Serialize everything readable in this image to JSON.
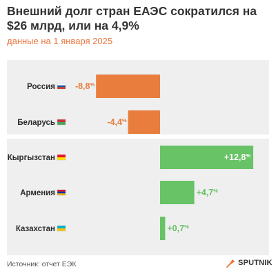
{
  "title": "Внешний долг стран ЕАЭС сократился на $26 млрд, или на 4,9%",
  "subtitle": "данные на 1 января 2025",
  "footer": {
    "source": "Источник: отчет ЕЭК",
    "brand": "SPUTNIK"
  },
  "colors": {
    "negative": "#e87d3e",
    "positive": "#68c266",
    "panel": "#efefef",
    "subtitle": "#e8763d"
  },
  "chart_data": {
    "type": "bar",
    "orientation": "horizontal",
    "unit": "%",
    "categories": [
      "Россия",
      "Беларусь",
      "Кыргызстан",
      "Армения",
      "Казахстан"
    ],
    "values": [
      -8.8,
      -4.4,
      12.8,
      4.7,
      0.7
    ],
    "value_labels": [
      "-8,8",
      "-4,4",
      "+12,8",
      "+4,7",
      "+0,7"
    ],
    "flags": [
      [
        "#ffffff",
        "#1c57a5",
        "#d52b1e"
      ],
      [
        "#c8313e",
        "#4aa657"
      ],
      [
        "#e8112d",
        "#ffe000"
      ],
      [
        "#d90012",
        "#0033a0",
        "#f2a800"
      ],
      [
        "#00afca",
        "#fec50c"
      ]
    ],
    "grid": false,
    "legend": "none"
  }
}
